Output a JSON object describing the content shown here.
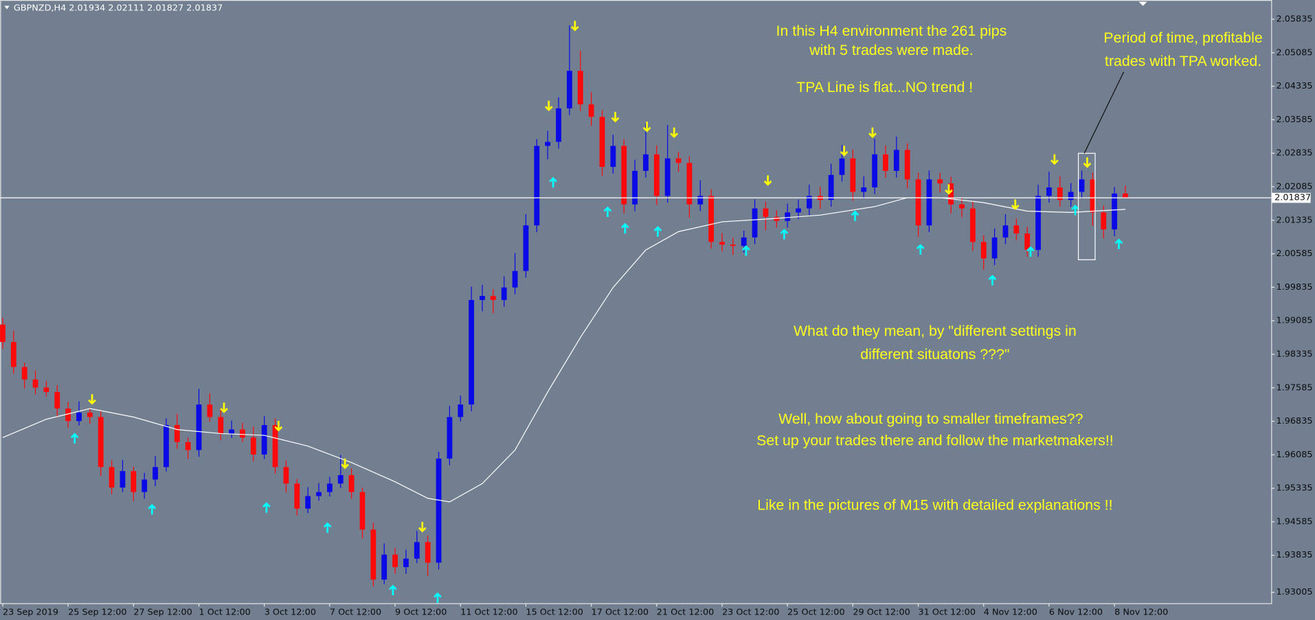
{
  "chart_data": {
    "type": "candlestick",
    "title": "GBPNZD,H4  2.01934 2.02111 2.01827 2.01837",
    "colors": {
      "up": "#0a0ae6",
      "down": "#ff0a0a"
    },
    "open": [
      1.99,
      1.9861,
      1.9805,
      1.9777,
      1.9759,
      1.9749,
      1.9712,
      1.9684,
      1.9703,
      1.9693,
      1.9581,
      1.9535,
      1.9572,
      1.9525,
      1.9553,
      1.9581,
      1.9675,
      1.9637,
      1.9619,
      1.9721,
      1.9693,
      1.9656,
      1.9665,
      1.9647,
      1.9609,
      1.9675,
      1.9581,
      1.9544,
      1.9488,
      1.9516,
      1.9525,
      1.9544,
      1.9563,
      1.9525,
      1.9441,
      1.9329,
      1.9385,
      1.9357,
      1.9376,
      1.9413,
      1.9367,
      1.96,
      1.9693,
      1.9721,
      1.9955,
      1.9964,
      1.9955,
      1.9983,
      2.002,
      2.0122,
      2.03,
      2.0309,
      2.0384,
      2.0468,
      2.0393,
      2.0365,
      2.0253,
      2.03,
      2.0169,
      2.0244,
      2.0281,
      2.0188,
      2.0272,
      2.0262,
      2.0169,
      2.0188,
      2.0085,
      2.0079,
      2.0076,
      2.0095,
      2.016,
      2.0141,
      2.0132,
      2.0151,
      2.016,
      2.0188,
      2.0179,
      2.0235,
      2.0272,
      2.0197,
      2.0207,
      2.0281,
      2.0244,
      2.0291,
      2.0225,
      2.0122,
      2.0225,
      2.0216,
      2.0169,
      2.016,
      2.0085,
      2.0048,
      2.0095,
      2.0122,
      2.0104,
      2.0067,
      2.0188,
      2.0207,
      2.0179,
      2.0197,
      2.0225,
      2.0151,
      2.0113,
      2.01934
    ],
    "high": [
      1.9915,
      1.9886,
      1.9815,
      1.9797,
      1.9774,
      1.9764,
      1.9727,
      1.9728,
      1.9713,
      1.9708,
      1.9596,
      1.9597,
      1.9582,
      1.9568,
      1.9606,
      1.969,
      1.97,
      1.9647,
      1.9756,
      1.9746,
      1.9713,
      1.9685,
      1.968,
      1.9672,
      1.9695,
      1.969,
      1.9596,
      1.9554,
      1.9536,
      1.9545,
      1.9559,
      1.9608,
      1.9578,
      1.9535,
      1.9456,
      1.941,
      1.94,
      1.9396,
      1.9438,
      1.9428,
      1.9615,
      1.9718,
      1.9741,
      1.9985,
      1.9989,
      1.9979,
      2.0008,
      2.006,
      2.0147,
      2.0315,
      2.0334,
      2.0409,
      2.057,
      2.0513,
      2.042,
      2.038,
      2.0325,
      2.0315,
      2.0269,
      2.0351,
      2.0301,
      2.0347,
      2.0287,
      2.0277,
      2.0223,
      2.0203,
      2.0105,
      2.0094,
      2.011,
      2.018,
      2.0175,
      2.0156,
      2.0171,
      2.018,
      2.0213,
      2.0208,
      2.026,
      2.0302,
      2.0292,
      2.0232,
      2.0316,
      2.0301,
      2.0321,
      2.0306,
      2.024,
      2.0245,
      2.024,
      2.0231,
      2.0184,
      2.0175,
      2.01,
      2.0115,
      2.0147,
      2.0137,
      2.0119,
      2.0213,
      2.0242,
      2.0232,
      2.0217,
      2.0245,
      2.024,
      2.0166,
      2.0208,
      2.02111
    ],
    "low": [
      1.9846,
      1.979,
      1.9757,
      1.9744,
      1.9739,
      1.9692,
      1.9669,
      1.9674,
      1.9678,
      1.9561,
      1.952,
      1.9525,
      1.9505,
      1.951,
      1.9538,
      1.9571,
      1.9622,
      1.9599,
      1.9604,
      1.9683,
      1.9641,
      1.9646,
      1.9637,
      1.9594,
      1.9599,
      1.9566,
      1.9524,
      1.9473,
      1.9478,
      1.9506,
      1.9515,
      1.9534,
      1.951,
      1.9421,
      1.9314,
      1.9319,
      1.9342,
      1.9342,
      1.9366,
      1.9337,
      1.9352,
      1.9585,
      1.9683,
      1.9706,
      1.993,
      1.9925,
      1.994,
      1.9968,
      2.0005,
      2.0107,
      2.027,
      2.0294,
      2.0369,
      2.0378,
      2.0345,
      2.0233,
      2.0238,
      2.0149,
      2.0154,
      2.0229,
      2.0168,
      2.0173,
      2.0242,
      2.0139,
      2.0154,
      2.007,
      2.0064,
      2.0056,
      2.0061,
      2.008,
      2.0111,
      2.0117,
      2.0117,
      2.0136,
      2.0145,
      2.0159,
      2.0164,
      2.022,
      2.0177,
      2.0182,
      2.0192,
      2.0229,
      2.0229,
      2.0205,
      2.0097,
      2.0107,
      2.0196,
      2.0149,
      2.014,
      2.0065,
      2.0023,
      2.0033,
      2.008,
      2.0089,
      2.0052,
      2.0052,
      2.0173,
      2.0164,
      2.0164,
      2.0182,
      2.0121,
      2.0093,
      2.0098,
      2.01827
    ],
    "close": [
      1.9861,
      1.9805,
      1.9777,
      1.9759,
      1.9749,
      1.9712,
      1.9684,
      1.9703,
      1.9693,
      1.9581,
      1.9535,
      1.9572,
      1.9525,
      1.9553,
      1.9581,
      1.9675,
      1.9637,
      1.9619,
      1.9721,
      1.9693,
      1.9656,
      1.9665,
      1.9647,
      1.9609,
      1.9675,
      1.9581,
      1.9544,
      1.9488,
      1.9516,
      1.9525,
      1.9544,
      1.9563,
      1.9525,
      1.9441,
      1.9329,
      1.9385,
      1.9357,
      1.9376,
      1.9413,
      1.9367,
      1.96,
      1.9693,
      1.9721,
      1.9955,
      1.9964,
      1.9955,
      1.9983,
      2.002,
      2.0122,
      2.03,
      2.0309,
      2.0384,
      2.0468,
      2.0393,
      2.0365,
      2.0253,
      2.03,
      2.0169,
      2.0244,
      2.0281,
      2.0188,
      2.0272,
      2.0262,
      2.0169,
      2.0188,
      2.0085,
      2.0079,
      2.0076,
      2.0095,
      2.016,
      2.0141,
      2.0132,
      2.0151,
      2.016,
      2.0188,
      2.0179,
      2.0235,
      2.0272,
      2.0197,
      2.0207,
      2.0281,
      2.0244,
      2.0291,
      2.0225,
      2.0122,
      2.0225,
      2.0216,
      2.0169,
      2.016,
      2.0085,
      2.0048,
      2.0095,
      2.0122,
      2.0104,
      2.0067,
      2.0188,
      2.0207,
      2.0179,
      2.0197,
      2.0225,
      2.0151,
      2.0113,
      2.01934,
      2.01837
    ],
    "xlim": [
      -0.23,
      116.38
    ],
    "xticks": [
      {
        "value": 0,
        "label": "23 Sep 2019"
      },
      {
        "value": 6,
        "label": "25 Sep 12:00"
      },
      {
        "value": 12,
        "label": "27 Sep 12:00"
      },
      {
        "value": 18,
        "label": "1 Oct 12:00"
      },
      {
        "value": 24,
        "label": "3 Oct 12:00"
      },
      {
        "value": 30,
        "label": "7 Oct 12:00"
      },
      {
        "value": 36,
        "label": "9 Oct 12:00"
      },
      {
        "value": 42,
        "label": "11 Oct 12:00"
      },
      {
        "value": 48,
        "label": "15 Oct 12:00"
      },
      {
        "value": 54,
        "label": "17 Oct 12:00"
      },
      {
        "value": 60,
        "label": "21 Oct 12:00"
      },
      {
        "value": 66,
        "label": "23 Oct 12:00"
      },
      {
        "value": 72,
        "label": "25 Oct 12:00"
      },
      {
        "value": 78,
        "label": "29 Oct 12:00"
      },
      {
        "value": 84,
        "label": "31 Oct 12:00"
      },
      {
        "value": 90,
        "label": "4 Nov 12:00"
      },
      {
        "value": 96,
        "label": "6 Nov 12:00"
      },
      {
        "value": 102,
        "label": "8 Nov 12:00"
      }
    ],
    "ylim": [
      1.92761,
      2.06266
    ],
    "yticks": [
      2.05835,
      2.05085,
      2.04335,
      2.03585,
      2.02835,
      2.02085,
      2.01335,
      2.00585,
      1.99835,
      1.99085,
      1.98335,
      1.97585,
      1.96835,
      1.96085,
      1.95335,
      1.94585,
      1.93835,
      1.93005
    ],
    "price_line": 2.01837,
    "ma": {
      "color": "#ffffff",
      "x": [
        0,
        4,
        8,
        12,
        16,
        20,
        24,
        28,
        32,
        36,
        39,
        41,
        44,
        47,
        50,
        53,
        56,
        59,
        62,
        66,
        70,
        75,
        80,
        83,
        86,
        90,
        94,
        98,
        103
      ],
      "values": [
        1.9647,
        1.9688,
        1.9712,
        1.9693,
        1.9665,
        1.9656,
        1.9652,
        1.9628,
        1.9591,
        1.9548,
        1.9511,
        1.9503,
        1.9544,
        1.9619,
        1.9749,
        1.9871,
        1.9983,
        2.0067,
        2.0108,
        2.013,
        2.0136,
        2.0145,
        2.0164,
        2.0184,
        2.0184,
        2.0173,
        2.0154,
        2.0151,
        2.0158
      ]
    },
    "sell_signals": {
      "color": "#ffff00",
      "x": [
        8.2,
        20.3,
        25.3,
        31.4,
        38.5,
        50.1,
        52.5,
        56.2,
        59.1,
        61.6,
        70.2,
        77.2,
        79.8,
        86.8,
        92.9,
        96.5,
        99.5
      ],
      "values": [
        1.9731,
        1.9712,
        1.9671,
        1.9587,
        1.9445,
        2.0388,
        2.0567,
        2.0363,
        2.0341,
        2.0328,
        2.0221,
        2.0287,
        2.0328,
        2.0201,
        2.0167,
        2.0268,
        2.0261
      ]
    },
    "buy_signals": {
      "color": "#00ffff",
      "x": [
        6.6,
        13.7,
        24.2,
        29.8,
        35.8,
        39.9,
        50.5,
        55.5,
        57.1,
        60.1,
        68.2,
        71.7,
        78.2,
        84.2,
        90.8,
        94.3,
        98.4,
        102.4
      ],
      "values": [
        1.9647,
        1.9488,
        1.9492,
        1.9447,
        1.9307,
        1.929,
        2.022,
        2.0154,
        2.0117,
        2.011,
        2.0067,
        2.0104,
        2.0145,
        2.007,
        2.0001,
        2.0065,
        2.0158,
        2.0082
      ]
    },
    "annotations": [
      "In this H4 environment the 261 pips",
      "with 5 trades were made.",
      "TPA Line is flat...NO trend !",
      "Period of time, profitable",
      "trades with TPA worked.",
      "What do they mean, by \"different settings in",
      "different situatons ???\"",
      "Well, how about going to smaller timeframes??",
      "Set up your trades there and follow the marketmakers!!",
      "Like in the pictures of M15 with detailed explanations !!"
    ]
  }
}
